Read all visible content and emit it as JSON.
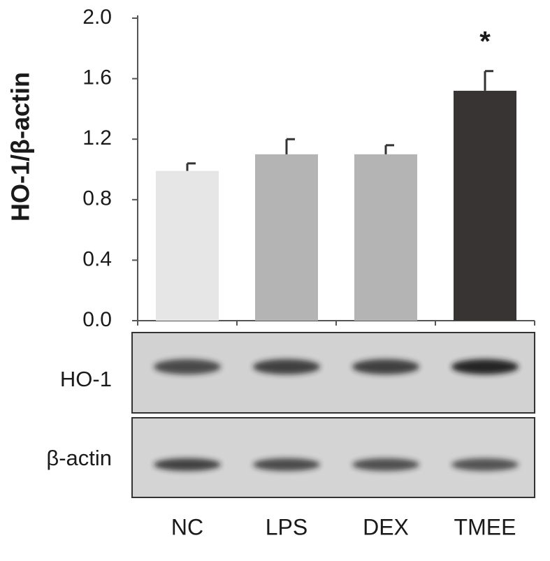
{
  "chart_data": {
    "type": "bar",
    "y_label": "HO-1/β-actin",
    "categories": [
      "NC",
      "LPS",
      "DEX",
      "TMEE"
    ],
    "values": [
      0.99,
      1.1,
      1.1,
      1.52
    ],
    "errors": [
      0.05,
      0.1,
      0.06,
      0.13
    ],
    "colors": [
      "#e6e6e6",
      "#b4b4b4",
      "#b4b4b4",
      "#383434"
    ],
    "annotations": [
      null,
      null,
      null,
      "*"
    ],
    "ylim": [
      0,
      2.0
    ],
    "yticks": [
      {
        "value": 0,
        "label": "0.0"
      },
      {
        "value": 0.4,
        "label": "0.4"
      },
      {
        "value": 0.8,
        "label": "0.8"
      },
      {
        "value": 1.2,
        "label": "1.2"
      },
      {
        "value": 1.6,
        "label": "1.6"
      },
      {
        "value": 2.0,
        "label": "2.0"
      }
    ],
    "blots": [
      {
        "label": "HO-1"
      },
      {
        "label": "β-actin"
      }
    ]
  }
}
